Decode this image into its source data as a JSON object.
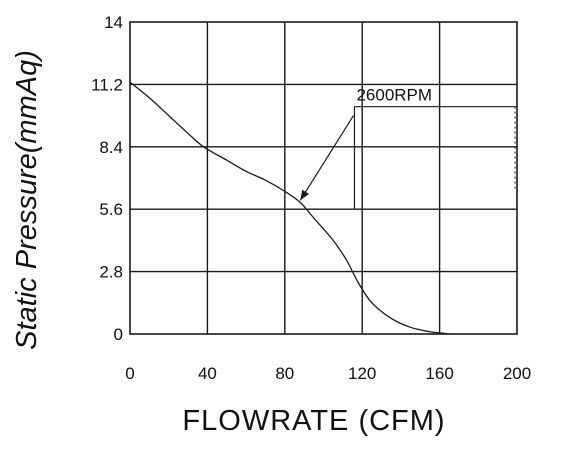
{
  "chart_data": {
    "type": "line",
    "title": "",
    "xlabel": "FLOWRATE (CFM)",
    "ylabel": "Static  Pressure(mmAq)",
    "xlim": [
      0,
      200
    ],
    "ylim": [
      0,
      14
    ],
    "x_ticks": [
      "0",
      "40",
      "80",
      "120",
      "160",
      "200"
    ],
    "y_ticks": [
      "0",
      "2.8",
      "5.6",
      "8.4",
      "11.2",
      "14"
    ],
    "grid": true,
    "series": [
      {
        "name": "2600RPM",
        "x": [
          0,
          10,
          20,
          30,
          38,
          50,
          60,
          70,
          80,
          88,
          95,
          105,
          112,
          118,
          125,
          135,
          145,
          155,
          160,
          165
        ],
        "y": [
          11.3,
          10.6,
          9.8,
          9.0,
          8.4,
          7.8,
          7.3,
          6.9,
          6.4,
          5.9,
          5.2,
          4.2,
          3.3,
          2.3,
          1.4,
          0.7,
          0.3,
          0.1,
          0.05,
          0.0
        ]
      }
    ],
    "annotations": [
      {
        "text": "2600RPM",
        "target_x": 88,
        "target_y": 6.0
      }
    ]
  },
  "colors": {
    "line": "#1a1a1a",
    "grid": "#1a1a1a"
  }
}
